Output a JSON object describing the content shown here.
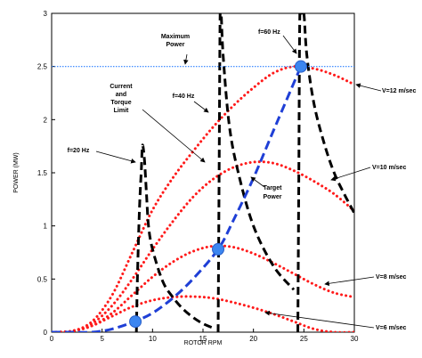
{
  "chart_data": {
    "type": "line",
    "title": "",
    "xlabel": "ROTOR RPM",
    "ylabel": "POWER (MW)",
    "xlim": [
      0,
      30
    ],
    "ylim": [
      0,
      3
    ],
    "x_ticks": [
      "0",
      "5",
      "10",
      "15",
      "20",
      "25",
      "30"
    ],
    "y_ticks": [
      "0",
      "0.5",
      "1",
      "1.5",
      "2",
      "2.5",
      "3"
    ],
    "grid": false,
    "series": [
      {
        "name": "V=6 m/sec",
        "style": "red-dotted",
        "x": [
          0,
          2,
          4,
          6,
          8,
          10,
          12,
          14,
          16,
          18,
          20,
          22,
          24,
          26,
          28,
          30
        ],
        "y": [
          0,
          0.01,
          0.06,
          0.15,
          0.24,
          0.3,
          0.33,
          0.335,
          0.32,
          0.28,
          0.23,
          0.17,
          0.1,
          0.03,
          0,
          0
        ]
      },
      {
        "name": "V=8 m/sec",
        "style": "red-dotted",
        "x": [
          0,
          2,
          4,
          6,
          8,
          10,
          12,
          14,
          16,
          18,
          20,
          22,
          24,
          26,
          28,
          30
        ],
        "y": [
          0,
          0.01,
          0.06,
          0.18,
          0.35,
          0.52,
          0.66,
          0.76,
          0.81,
          0.8,
          0.74,
          0.65,
          0.55,
          0.45,
          0.37,
          0.33
        ]
      },
      {
        "name": "V=10 m/sec",
        "style": "red-dotted",
        "x": [
          0,
          2,
          4,
          6,
          8,
          10,
          12,
          14,
          16,
          18,
          20,
          22,
          24,
          26,
          28,
          30
        ],
        "y": [
          0,
          0.01,
          0.08,
          0.25,
          0.5,
          0.78,
          1.04,
          1.27,
          1.44,
          1.55,
          1.6,
          1.59,
          1.52,
          1.42,
          1.3,
          1.14
        ]
      },
      {
        "name": "V=12 m/sec",
        "style": "red-dotted",
        "x": [
          0,
          2,
          4,
          6,
          8,
          10,
          12,
          14,
          16,
          18,
          20,
          22,
          24,
          26,
          28,
          30
        ],
        "y": [
          0,
          0.01,
          0.1,
          0.35,
          0.75,
          1.15,
          1.45,
          1.7,
          1.93,
          2.13,
          2.3,
          2.44,
          2.5,
          2.48,
          2.42,
          2.33
        ]
      },
      {
        "name": "Current and Torque Limit",
        "style": "black-dashed",
        "segments": [
          {
            "x": [
              8.4,
              8.5,
              8.7,
              8.9,
              9.0,
              9.2,
              9.4,
              9.6,
              10,
              11,
              12,
              13,
              14,
              15,
              16
            ],
            "y": [
              0,
              0.5,
              1.15,
              1.55,
              1.76,
              1.62,
              1.3,
              1.0,
              0.78,
              0.48,
              0.33,
              0.22,
              0.14,
              0.08,
              0.04
            ]
          },
          {
            "x": [
              16.5,
              16.6,
              16.7,
              16.8,
              17,
              17.6,
              18.5,
              20,
              22,
              24
            ],
            "y": [
              0,
              1.5,
              3,
              3,
              2.6,
              1.95,
              1.5,
              1.0,
              0.62,
              0.4
            ]
          },
          {
            "x": [
              24.4,
              24.5,
              24.6,
              24.8,
              25,
              25.3,
              26,
              27,
              28,
              29,
              30
            ],
            "y": [
              0,
              1.5,
              3,
              3,
              3,
              2.6,
              2.15,
              1.78,
              1.5,
              1.3,
              1.12
            ]
          }
        ]
      },
      {
        "name": "Target Power",
        "style": "blue-dashed",
        "x": [
          0,
          2,
          4,
          6,
          8.2,
          10,
          12,
          14,
          16.5,
          18,
          20,
          22,
          24.7
        ],
        "y": [
          0,
          0,
          0,
          0.03,
          0.1,
          0.18,
          0.32,
          0.5,
          0.78,
          1.05,
          1.45,
          1.9,
          2.5
        ]
      },
      {
        "name": "Maximum Power",
        "style": "blue-dotted",
        "x": [
          0,
          30
        ],
        "y": [
          2.5,
          2.5
        ]
      }
    ],
    "markers": [
      {
        "x": 8.3,
        "y": 0.1
      },
      {
        "x": 16.5,
        "y": 0.78
      },
      {
        "x": 24.7,
        "y": 2.5
      }
    ],
    "annotations": [
      {
        "text": "Maximum Power",
        "lines": [
          "Maximum",
          "Power"
        ]
      },
      {
        "text": "f=60 Hz",
        "lines": [
          "f=60 Hz"
        ]
      },
      {
        "text": "Current and Torque Limit",
        "lines": [
          "Current",
          "and",
          "Torque",
          "Limit"
        ]
      },
      {
        "text": "f=40 Hz",
        "lines": [
          "f=40 Hz"
        ]
      },
      {
        "text": "f=20 Hz",
        "lines": [
          "f=20 Hz"
        ]
      },
      {
        "text": "Target Power",
        "lines": [
          "Target",
          "Power"
        ]
      },
      {
        "text": "V=12 m/sec",
        "lines": [
          "V=12 m/sec"
        ]
      },
      {
        "text": "V=10 m/sec",
        "lines": [
          "V=10 m/sec"
        ]
      },
      {
        "text": "V=8 m/sec",
        "lines": [
          "V=8 m/sec"
        ]
      },
      {
        "text": "V=6 m/sec",
        "lines": [
          "V=6 m/sec"
        ]
      }
    ],
    "colors": {
      "wind_curves": "#ff1a1a",
      "limit_curve": "#000000",
      "target_curve": "#1f3fd6",
      "max_power_line": "#2a7fff",
      "markers": "#3c86f0"
    }
  }
}
